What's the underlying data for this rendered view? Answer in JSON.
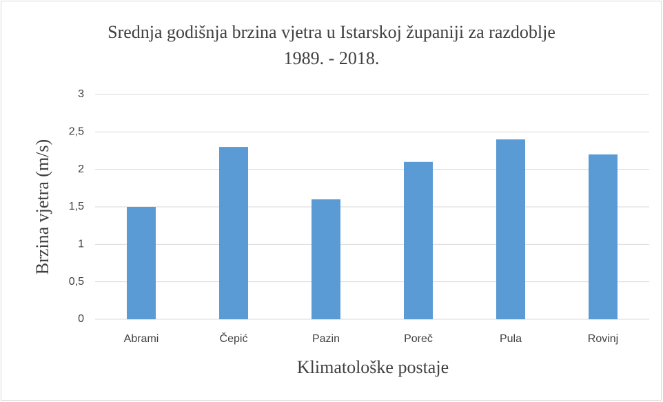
{
  "chart_data": {
    "type": "bar",
    "title": "Srednja godišnja brzina vjetra u Istarskoj županiji za razdoblje 1989. - 2018.",
    "x_label": "Klimatološke postaje",
    "y_label": "Brzina vjetra (m/s)",
    "categories": [
      "Abrami",
      "Čepić",
      "Pazin",
      "Poreč",
      "Pula",
      "Rovinj"
    ],
    "values": [
      1.5,
      2.3,
      1.6,
      2.1,
      2.4,
      2.2
    ],
    "color": "#5b9bd5",
    "ylim": [
      0,
      3
    ],
    "yticks": [
      0,
      {
        "value": 0.5,
        "label": "0,5"
      },
      1,
      {
        "value": 1.5,
        "label": "1,5"
      },
      2,
      {
        "value": 2.5,
        "label": "2,5"
      },
      3
    ],
    "grid": true
  }
}
